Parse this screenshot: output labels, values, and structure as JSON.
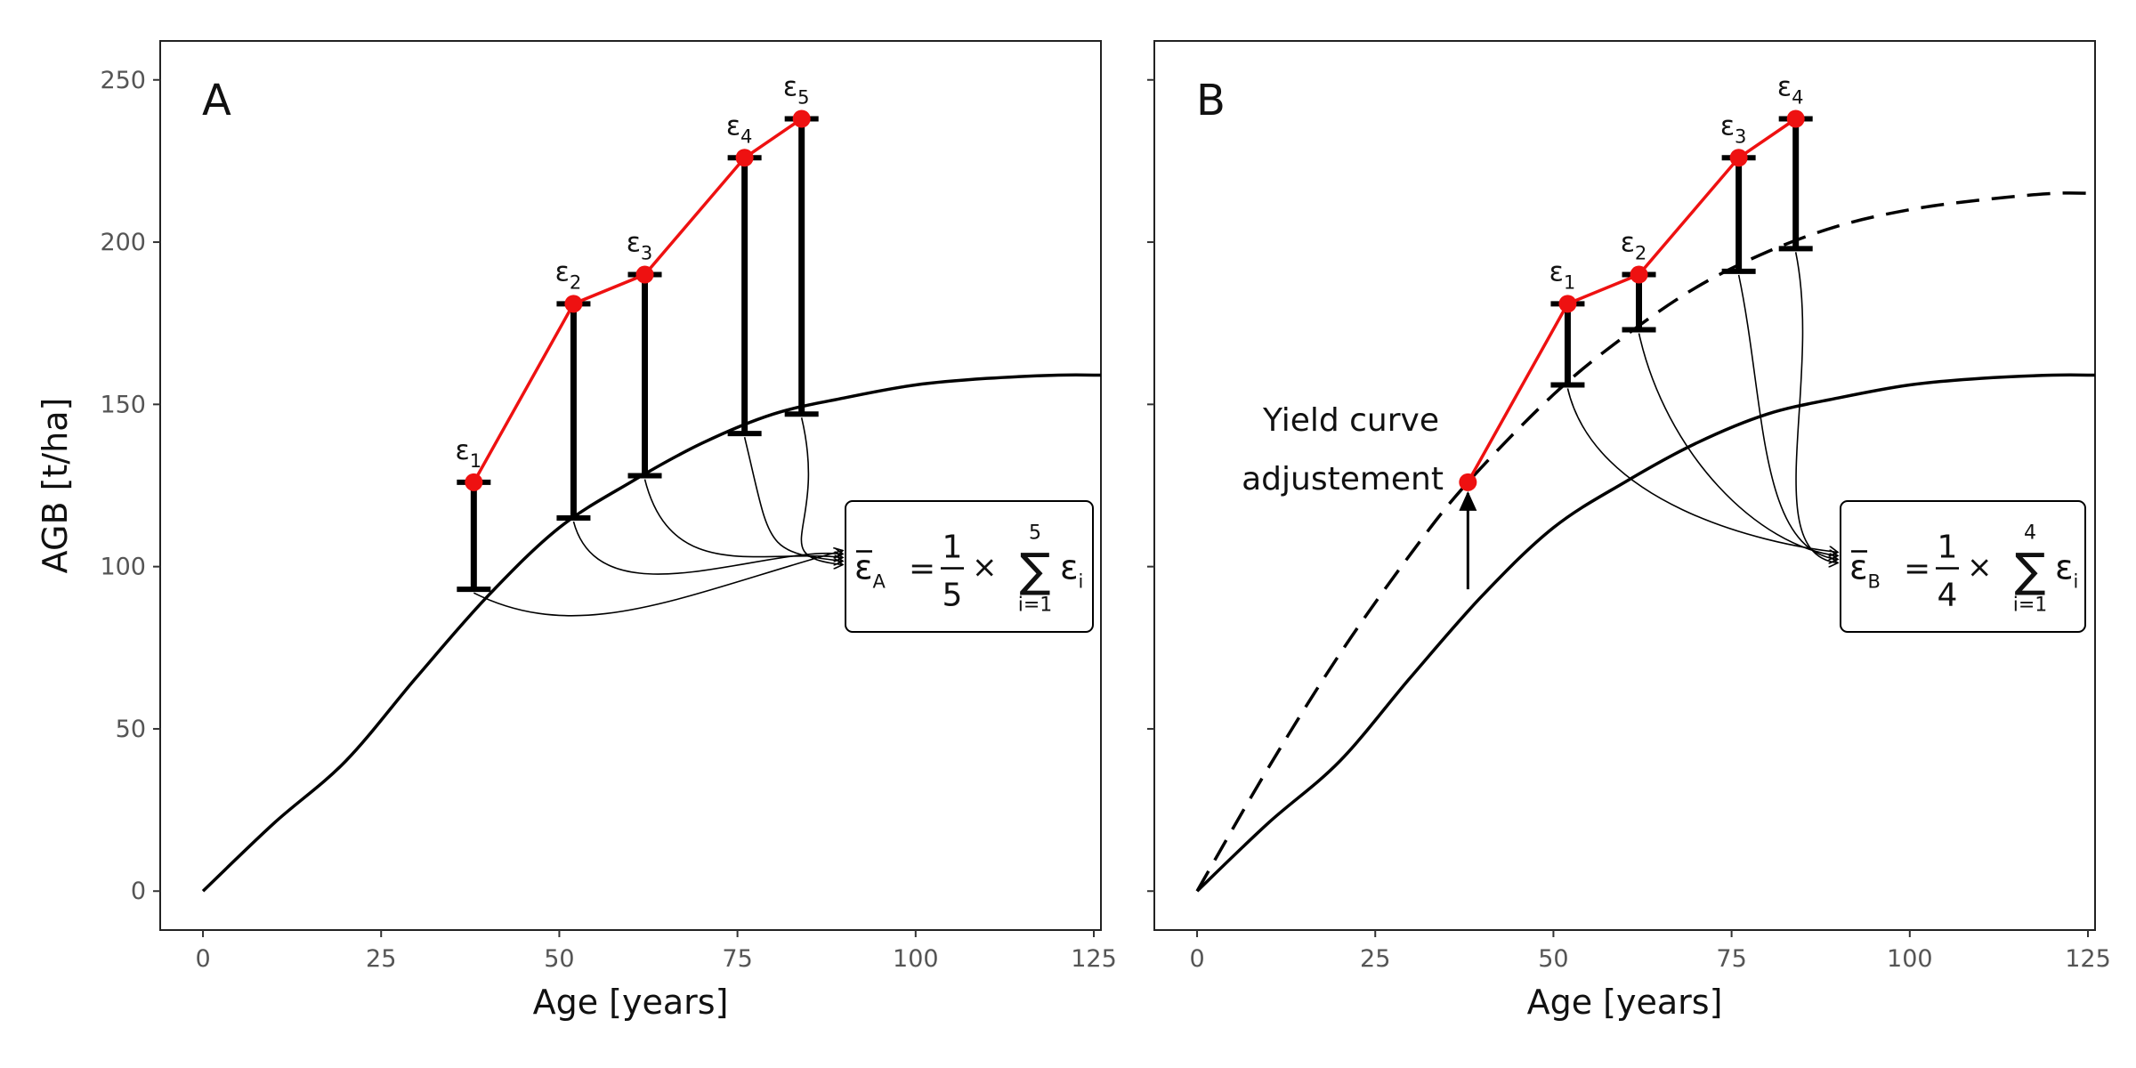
{
  "chart_data": [
    {
      "type": "line",
      "panel_label": "A",
      "xlabel": "Age [years]",
      "ylabel": "AGB [t/ha]",
      "xlim": [
        -6,
        126
      ],
      "ylim": [
        -12,
        262
      ],
      "xticks": [
        0,
        25,
        50,
        75,
        100,
        125
      ],
      "yticks": [
        0,
        50,
        100,
        150,
        200,
        250
      ],
      "grid": false,
      "curves": [
        {
          "style": "solid",
          "x": [
            0,
            10,
            20,
            30,
            40,
            50,
            60,
            70,
            80,
            90,
            100,
            110,
            120,
            126
          ],
          "y": [
            0,
            21,
            40,
            66,
            91,
            112,
            126,
            138,
            147,
            152,
            156,
            158,
            159,
            159
          ]
        }
      ],
      "observations": {
        "x": [
          38,
          52,
          62,
          76,
          84
        ],
        "y": [
          126,
          181,
          190,
          226,
          238
        ]
      },
      "residuals": [
        {
          "label": "ε",
          "sub": "1",
          "x": 38,
          "obs": 126,
          "model": 93
        },
        {
          "label": "ε",
          "sub": "2",
          "x": 52,
          "obs": 181,
          "model": 115
        },
        {
          "label": "ε",
          "sub": "3",
          "x": 62,
          "obs": 190,
          "model": 128
        },
        {
          "label": "ε",
          "sub": "4",
          "x": 76,
          "obs": 226,
          "model": 141
        },
        {
          "label": "ε",
          "sub": "5",
          "x": 84,
          "obs": 238,
          "model": 147
        }
      ],
      "formula": {
        "bar": "ε",
        "bar_sub": "A",
        "num": "1",
        "den": "5",
        "times": "×",
        "sum": "∑",
        "sum_top": "5",
        "sum_bottom": "i=1",
        "term": "ε",
        "term_sub": "i",
        "equals": "="
      },
      "annotation": ""
    },
    {
      "type": "line",
      "panel_label": "B",
      "xlabel": "Age [years]",
      "ylabel": "",
      "xlim": [
        -6,
        126
      ],
      "ylim": [
        -12,
        262
      ],
      "xticks": [
        0,
        25,
        50,
        75,
        100,
        125
      ],
      "yticks": [
        0,
        50,
        100,
        150,
        200,
        250
      ],
      "grid": false,
      "curves": [
        {
          "style": "solid",
          "x": [
            0,
            10,
            20,
            30,
            40,
            50,
            60,
            70,
            80,
            90,
            100,
            110,
            120,
            126
          ],
          "y": [
            0,
            21,
            40,
            66,
            91,
            112,
            126,
            138,
            147,
            152,
            156,
            158,
            159,
            159
          ]
        },
        {
          "style": "dashed",
          "x": [
            0,
            10,
            20,
            30,
            38,
            50,
            60,
            70,
            80,
            90,
            100,
            110,
            120,
            126
          ],
          "y": [
            0,
            38,
            73,
            104,
            126,
            153,
            171,
            186,
            197,
            205,
            210,
            213,
            215,
            215
          ]
        }
      ],
      "observations": {
        "x": [
          38,
          52,
          62,
          76,
          84
        ],
        "y": [
          126,
          181,
          190,
          226,
          238
        ]
      },
      "residuals": [
        {
          "label": "ε",
          "sub": "1",
          "x": 52,
          "obs": 181,
          "model": 156
        },
        {
          "label": "ε",
          "sub": "2",
          "x": 62,
          "obs": 190,
          "model": 173
        },
        {
          "label": "ε",
          "sub": "3",
          "x": 76,
          "obs": 226,
          "model": 191
        },
        {
          "label": "ε",
          "sub": "4",
          "x": 84,
          "obs": 238,
          "model": 198
        }
      ],
      "adjustment_arrow": {
        "x": 38,
        "from": 93,
        "to": 126
      },
      "formula": {
        "bar": "ε",
        "bar_sub": "B",
        "num": "1",
        "den": "4",
        "times": "×",
        "sum": "∑",
        "sum_top": "4",
        "sum_bottom": "i=1",
        "term": "ε",
        "term_sub": "i",
        "equals": "="
      },
      "annotation": [
        "Yield curve",
        "adjustement"
      ]
    }
  ],
  "colors": {
    "observed": "#ee1111",
    "line": "#000000"
  }
}
